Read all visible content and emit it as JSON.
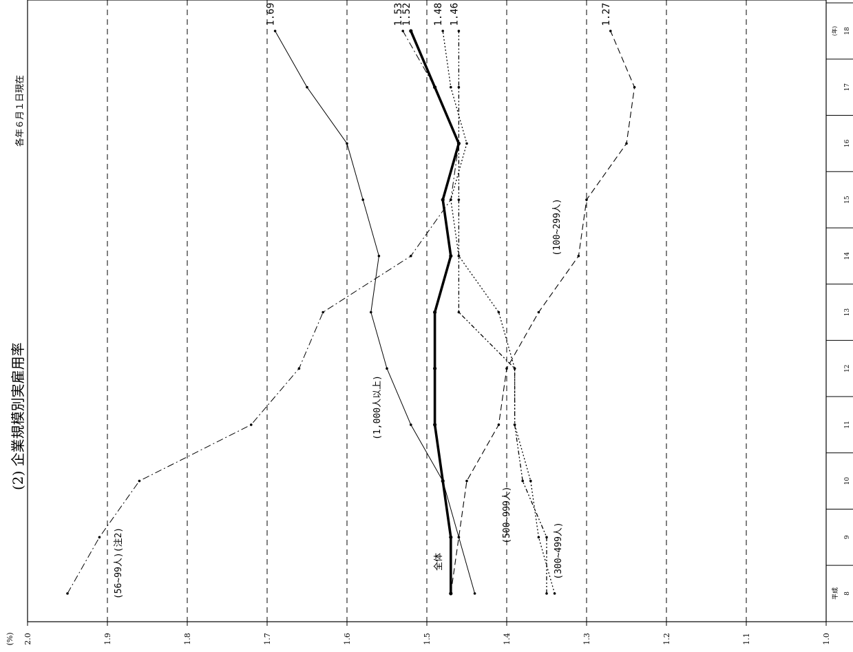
{
  "header": {
    "title": "(2) 企業規模別実雇用率",
    "date_note": "各年６月１日現在",
    "pct_unit": "(%)"
  },
  "chart_data": {
    "type": "line",
    "title": "(2) 企業規模別実雇用率",
    "subtitle": "各年６月１日現在",
    "xlabel": "",
    "ylabel": "(%)",
    "ylim": [
      1.0,
      2.0
    ],
    "x_unit": "(年)",
    "era_label": "平成",
    "x": [
      8,
      9,
      10,
      11,
      12,
      13,
      14,
      15,
      16,
      17,
      18
    ],
    "x_tick_labels": [
      "8",
      "9",
      "10",
      "11",
      "12",
      "13",
      "14",
      "15",
      "16",
      "17",
      "18"
    ],
    "y_ticks": [
      "1.0",
      "1.1",
      "1.2",
      "1.3",
      "1.4",
      "1.5",
      "1.6",
      "1.7",
      "1.8",
      "1.9",
      "2.0"
    ],
    "grid": true,
    "series": [
      {
        "name": "全体",
        "values": [
          1.47,
          1.47,
          1.48,
          1.49,
          1.49,
          1.49,
          1.47,
          1.48,
          1.46,
          1.49,
          1.52
        ],
        "end_label": "1.52",
        "style": "bold"
      },
      {
        "name": "(1,000人以上)",
        "values": [
          1.44,
          1.46,
          1.48,
          1.52,
          1.55,
          1.57,
          1.56,
          1.58,
          1.6,
          1.65,
          1.69
        ],
        "end_label": "1.69",
        "style": "solid"
      },
      {
        "name": "(56~99人)(注2)",
        "values": [
          1.95,
          1.91,
          1.86,
          1.72,
          1.66,
          1.63,
          1.52,
          1.47,
          1.46,
          1.49,
          1.53
        ],
        "end_label": "1.53",
        "style": "dashdot"
      },
      {
        "name": "(500~999人)",
        "values": [
          1.34,
          1.36,
          1.37,
          1.39,
          1.39,
          1.41,
          1.46,
          1.47,
          1.45,
          1.47,
          1.48
        ],
        "end_label": "1.48",
        "style": "dotted"
      },
      {
        "name": "(300~499人)",
        "values": [
          1.35,
          1.35,
          1.38,
          1.39,
          1.39,
          1.46,
          1.46,
          1.46,
          1.46,
          1.46,
          1.46
        ],
        "end_label": "1.46",
        "style": "dashdotdot"
      },
      {
        "name": "(100~299人)",
        "values": [
          1.47,
          1.46,
          1.45,
          1.41,
          1.4,
          1.36,
          1.31,
          1.3,
          1.25,
          1.24,
          1.27
        ],
        "end_label": "1.27",
        "style": "dashed"
      }
    ],
    "annotations": [
      "(1,000人以上)",
      "(56~99人)(注2)",
      "全体",
      "(500~999人)",
      "(300~499人)",
      "(100~299人)"
    ]
  }
}
